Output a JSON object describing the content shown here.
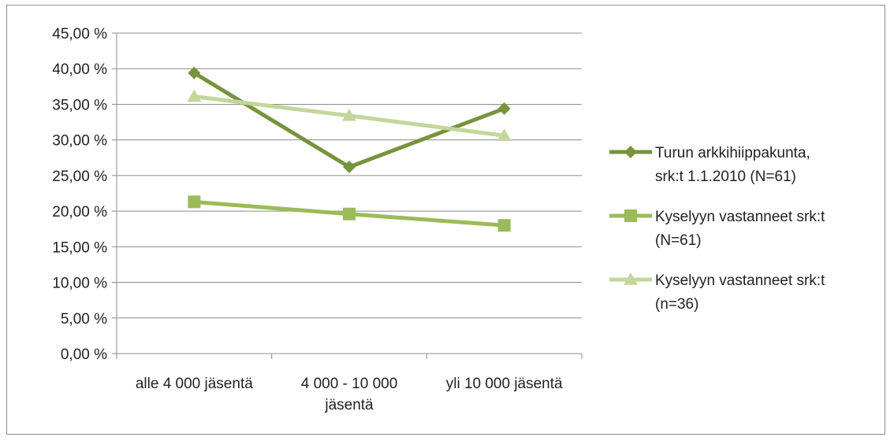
{
  "chart_data": {
    "type": "line",
    "title": "",
    "xlabel": "",
    "ylabel": "",
    "categories": [
      [
        "alle 4 000 jäsentä"
      ],
      [
        "4 000 - 10 000",
        "jäsentä"
      ],
      [
        "yli 10 000 jäsentä"
      ]
    ],
    "y_ticks": [
      "0,00 %",
      "5,00 %",
      "10,00 %",
      "15,00 %",
      "20,00 %",
      "25,00 %",
      "30,00 %",
      "35,00 %",
      "40,00 %",
      "45,00 %"
    ],
    "ylim": [
      0,
      45
    ],
    "grid": true,
    "legend_position": "right",
    "series": [
      {
        "name_lines": [
          "Turun arkkihiippakunta,",
          "srk:t 1.1.2010 (N=61)"
        ],
        "values": [
          39.4,
          26.2,
          34.4
        ],
        "color": "#77933c",
        "marker": "diamond"
      },
      {
        "name_lines": [
          "Kyselyyn vastanneet  srk:t",
          "(N=61)"
        ],
        "values": [
          21.3,
          19.6,
          18.0
        ],
        "color": "#9bbb59",
        "marker": "square"
      },
      {
        "name_lines": [
          "Kyselyyn vastanneet srk:t",
          "(n=36)"
        ],
        "values": [
          36.1,
          33.4,
          30.6
        ],
        "color": "#c3d69b",
        "marker": "triangle"
      }
    ]
  }
}
